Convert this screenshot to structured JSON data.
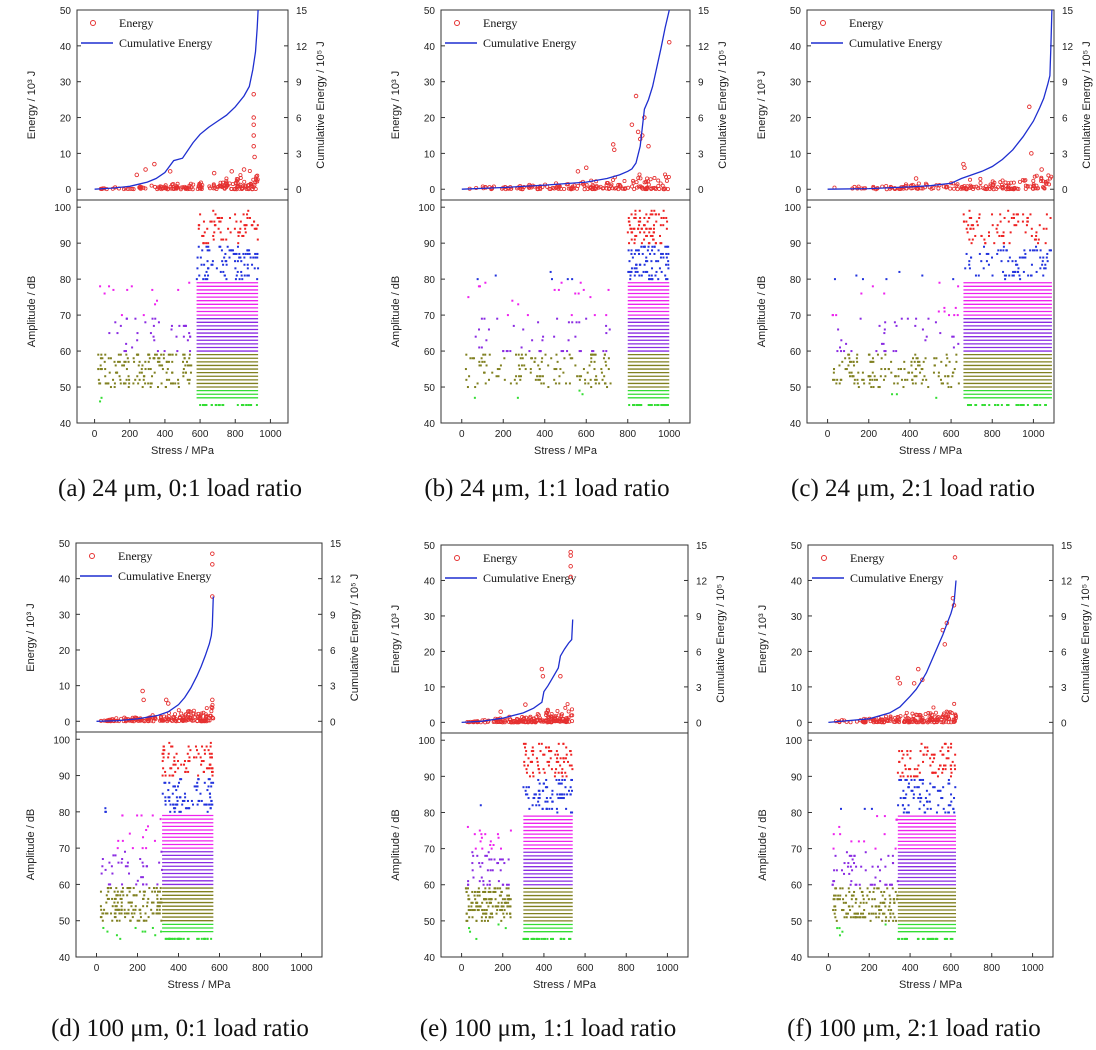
{
  "labels": {
    "energy_axis": "Energy / 10³ J",
    "cum_axis": "Cumulative Energy / 10⁵ J",
    "amp_axis": "Amplitude / dB",
    "stress_axis": "Stress / MPa",
    "legend_energy": "Energy",
    "legend_cum": "Cumulative Energy"
  },
  "axes": {
    "energy_ticks": [
      "0",
      "10",
      "20",
      "30",
      "40",
      "50"
    ],
    "cum_ticks": [
      "0",
      "3",
      "6",
      "9",
      "12",
      "15"
    ],
    "amp_ticks": [
      "40",
      "50",
      "60",
      "70",
      "80",
      "90",
      "100"
    ],
    "stress_ticks": [
      "0",
      "200",
      "400",
      "600",
      "800",
      "1000"
    ]
  },
  "colors": {
    "energy": "#e53030",
    "cumulative": "#1f2fd0",
    "amp_bands": [
      "#33dd33",
      "#808020",
      "#8a2be2",
      "#ee22ee",
      "#2233dd",
      "#ee2222"
    ]
  },
  "chart_data": [
    {
      "type": "scatter",
      "caption": "(a) 24 μm, 0:1 load ratio",
      "xlabel": "Stress / MPa",
      "ylabel_left": "Energy / 10³ J",
      "ylabel_right": "Cumulative Energy / 10⁵ J",
      "ylabel_amp": "Amplitude / dB",
      "xlim": [
        -100,
        1100
      ],
      "energy_ylim": [
        -3,
        50
      ],
      "cum_ylim": [
        -0.9,
        15
      ],
      "amp_ylim": [
        40,
        102
      ],
      "max_stress": 930,
      "cumulative_energy": {
        "x": [
          0,
          100,
          200,
          300,
          350,
          400,
          450,
          500,
          560,
          600,
          650,
          700,
          750,
          800,
          850,
          880,
          900,
          915,
          925,
          930
        ],
        "y": [
          0,
          0.1,
          0.25,
          0.6,
          0.9,
          1.4,
          2.4,
          2.6,
          3.9,
          4.6,
          5.2,
          5.7,
          6.2,
          6.9,
          7.8,
          8.6,
          10,
          11.5,
          13.5,
          15
        ]
      },
      "energy_spikes": [
        {
          "x": 240,
          "y": 4
        },
        {
          "x": 290,
          "y": 5.5
        },
        {
          "x": 340,
          "y": 7
        },
        {
          "x": 430,
          "y": 5
        },
        {
          "x": 680,
          "y": 4.5
        },
        {
          "x": 780,
          "y": 5
        },
        {
          "x": 850,
          "y": 5.5
        },
        {
          "x": 905,
          "y": 26.5
        },
        {
          "x": 905,
          "y": 20
        },
        {
          "x": 905,
          "y": 18
        },
        {
          "x": 905,
          "y": 15
        },
        {
          "x": 905,
          "y": 12
        },
        {
          "x": 910,
          "y": 9
        }
      ],
      "amplitude_clusters": {
        "sparse_max": 560,
        "dense_start": 580
      }
    },
    {
      "type": "scatter",
      "caption": "(b) 24 μm, 1:1 load ratio",
      "xlabel": "Stress / MPa",
      "ylabel_left": "Energy / 10³ J",
      "ylabel_right": "Cumulative Energy / 10⁵ J",
      "ylabel_amp": "Amplitude / dB",
      "xlim": [
        -100,
        1100
      ],
      "energy_ylim": [
        -3,
        50
      ],
      "cum_ylim": [
        -0.9,
        15
      ],
      "amp_ylim": [
        40,
        102
      ],
      "max_stress": 1000,
      "cumulative_energy": {
        "x": [
          0,
          200,
          400,
          600,
          700,
          760,
          800,
          820,
          840,
          860,
          880,
          900,
          920,
          940,
          960,
          980,
          1000
        ],
        "y": [
          0,
          0.15,
          0.35,
          0.6,
          0.9,
          1.2,
          1.5,
          1.7,
          2.2,
          3.6,
          6.7,
          7.5,
          8.6,
          10.2,
          11.8,
          13.5,
          15
        ]
      },
      "energy_spikes": [
        {
          "x": 560,
          "y": 5
        },
        {
          "x": 600,
          "y": 6
        },
        {
          "x": 730,
          "y": 12.5
        },
        {
          "x": 735,
          "y": 11
        },
        {
          "x": 820,
          "y": 18
        },
        {
          "x": 840,
          "y": 26
        },
        {
          "x": 850,
          "y": 16
        },
        {
          "x": 860,
          "y": 14
        },
        {
          "x": 870,
          "y": 15
        },
        {
          "x": 880,
          "y": 20
        },
        {
          "x": 900,
          "y": 12
        },
        {
          "x": 1000,
          "y": 41
        }
      ],
      "amplitude_clusters": {
        "sparse_max": 720,
        "dense_start": 800
      }
    },
    {
      "type": "scatter",
      "caption": "(c) 24 μm, 2:1 load ratio",
      "xlabel": "Stress / MPa",
      "ylabel_left": "Energy / 10³ J",
      "ylabel_right": "Cumulative Energy / 10⁵ J",
      "ylabel_amp": "Amplitude / dB",
      "xlim": [
        -100,
        1100
      ],
      "energy_ylim": [
        -3,
        50
      ],
      "cum_ylim": [
        -0.9,
        15
      ],
      "amp_ylim": [
        40,
        102
      ],
      "max_stress": 1090,
      "cumulative_energy": {
        "x": [
          0,
          200,
          400,
          500,
          600,
          650,
          700,
          750,
          800,
          850,
          900,
          950,
          1000,
          1030,
          1050,
          1070,
          1080,
          1085,
          1090
        ],
        "y": [
          0,
          0.05,
          0.2,
          0.3,
          0.5,
          0.9,
          1.2,
          1.5,
          1.9,
          2.5,
          3.3,
          4.4,
          5.7,
          6.8,
          7.6,
          8.8,
          9.5,
          12,
          15
        ]
      },
      "energy_spikes": [
        {
          "x": 430,
          "y": 3
        },
        {
          "x": 660,
          "y": 7
        },
        {
          "x": 665,
          "y": 6
        },
        {
          "x": 980,
          "y": 23
        },
        {
          "x": 990,
          "y": 10
        },
        {
          "x": 1040,
          "y": 5.5
        }
      ],
      "amplitude_clusters": {
        "sparse_max": 640,
        "dense_start": 660
      }
    },
    {
      "type": "scatter",
      "caption": "(d) 100 μm, 0:1 load ratio",
      "xlabel": "Stress / MPa",
      "ylabel_left": "Energy / 10³ J",
      "ylabel_right": "Cumulative Energy / 10⁵ J",
      "ylabel_amp": "Amplitude / dB",
      "xlim": [
        -100,
        1100
      ],
      "energy_ylim": [
        -3,
        50
      ],
      "cum_ylim": [
        -0.9,
        15
      ],
      "amp_ylim": [
        40,
        102
      ],
      "max_stress": 570,
      "cumulative_energy": {
        "x": [
          0,
          100,
          200,
          300,
          350,
          400,
          430,
          460,
          490,
          510,
          530,
          550,
          560,
          565,
          570
        ],
        "y": [
          0,
          0.05,
          0.2,
          0.5,
          0.8,
          1.4,
          2,
          2.8,
          3.8,
          4.6,
          5.5,
          6.5,
          7.2,
          8,
          10.5
        ]
      },
      "energy_spikes": [
        {
          "x": 225,
          "y": 8.5
        },
        {
          "x": 230,
          "y": 6
        },
        {
          "x": 340,
          "y": 6
        },
        {
          "x": 350,
          "y": 5
        },
        {
          "x": 565,
          "y": 47
        },
        {
          "x": 565,
          "y": 44
        },
        {
          "x": 565,
          "y": 35
        },
        {
          "x": 565,
          "y": 6
        }
      ],
      "amplitude_clusters": {
        "sparse_max": 320,
        "dense_start": 320
      }
    },
    {
      "type": "scatter",
      "caption": "(e) 100 μm, 1:1 load ratio",
      "xlabel": "Stress / MPa",
      "ylabel_left": "Energy / 10³ J",
      "ylabel_right": "Cumulative Energy / 10⁵ J",
      "ylabel_amp": "Amplitude / dB",
      "xlim": [
        -100,
        1100
      ],
      "energy_ylim": [
        -3,
        50
      ],
      "cum_ylim": [
        -0.9,
        15
      ],
      "amp_ylim": [
        40,
        102
      ],
      "max_stress": 540,
      "cumulative_energy": {
        "x": [
          0,
          100,
          200,
          300,
          350,
          390,
          400,
          420,
          440,
          470,
          480,
          500,
          520,
          535,
          540
        ],
        "y": [
          0,
          0.1,
          0.35,
          0.8,
          1.2,
          1.7,
          2.6,
          3.1,
          3.7,
          4.6,
          5.6,
          6.2,
          6.7,
          7,
          8.7
        ]
      },
      "energy_spikes": [
        {
          "x": 190,
          "y": 3
        },
        {
          "x": 310,
          "y": 5
        },
        {
          "x": 390,
          "y": 15
        },
        {
          "x": 395,
          "y": 13
        },
        {
          "x": 480,
          "y": 13
        },
        {
          "x": 530,
          "y": 48
        },
        {
          "x": 530,
          "y": 47
        },
        {
          "x": 530,
          "y": 44
        },
        {
          "x": 530,
          "y": 41
        }
      ],
      "amplitude_clusters": {
        "sparse_max": 240,
        "dense_start": 300
      }
    },
    {
      "type": "scatter",
      "caption": "(f) 100 μm, 2:1 load ratio",
      "xlabel": "Stress / MPa",
      "ylabel_left": "Energy / 10³ J",
      "ylabel_right": "Cumulative Energy / 10⁵ J",
      "ylabel_amp": "Amplitude / dB",
      "xlim": [
        -100,
        1100
      ],
      "energy_ylim": [
        -3,
        50
      ],
      "cum_ylim": [
        -0.9,
        15
      ],
      "amp_ylim": [
        40,
        102
      ],
      "max_stress": 625,
      "cumulative_energy": {
        "x": [
          0,
          200,
          300,
          350,
          400,
          430,
          460,
          480,
          500,
          520,
          540,
          560,
          580,
          600,
          615,
          620,
          625
        ],
        "y": [
          0,
          0.3,
          0.8,
          1.3,
          2.2,
          2.8,
          3.6,
          4.2,
          5,
          5.8,
          6.6,
          7.4,
          8.3,
          9.2,
          10.1,
          11,
          12
        ]
      },
      "energy_spikes": [
        {
          "x": 340,
          "y": 12.5
        },
        {
          "x": 350,
          "y": 11
        },
        {
          "x": 420,
          "y": 11
        },
        {
          "x": 440,
          "y": 15
        },
        {
          "x": 460,
          "y": 12
        },
        {
          "x": 560,
          "y": 26
        },
        {
          "x": 570,
          "y": 22
        },
        {
          "x": 580,
          "y": 28
        },
        {
          "x": 610,
          "y": 35
        },
        {
          "x": 615,
          "y": 33
        },
        {
          "x": 620,
          "y": 46.5
        }
      ],
      "amplitude_clusters": {
        "sparse_max": 340,
        "dense_start": 340
      }
    }
  ]
}
